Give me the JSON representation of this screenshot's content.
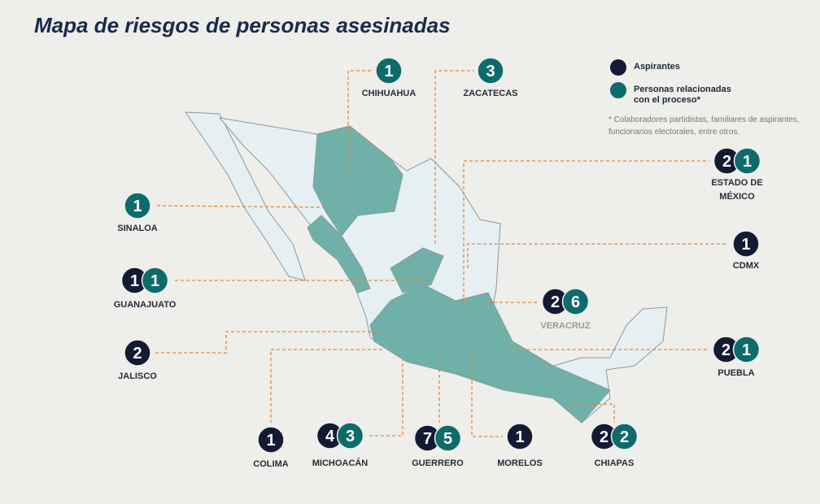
{
  "title": "Mapa de riesgos de personas asesinadas",
  "legend": [
    {
      "label": "Aspirantes",
      "color": "#141a33"
    },
    {
      "label": "Personas relacionadas\ncon el proceso*",
      "color": "#0e6b6b"
    }
  ],
  "note": "* Colaboradores partidistas, familiares de aspirantes, funcionarios electorales, entre otros.",
  "states": [
    {
      "name": "CHIHUAHUA",
      "relacionadas": 1
    },
    {
      "name": "ZACATECAS",
      "relacionadas": 3
    },
    {
      "name": "ESTADO DE\nMÉXICO",
      "aspirantes": 2,
      "relacionadas": 1
    },
    {
      "name": "SINALOA",
      "relacionadas": 1
    },
    {
      "name": "CDMX",
      "aspirantes": 1
    },
    {
      "name": "GUANAJUATO",
      "aspirantes": 1,
      "relacionadas": 1
    },
    {
      "name": "VERACRUZ",
      "aspirantes": 2,
      "relacionadas": 6
    },
    {
      "name": "JALISCO",
      "aspirantes": 2
    },
    {
      "name": "PUEBLA",
      "aspirantes": 2,
      "relacionadas": 1
    },
    {
      "name": "COLIMA",
      "aspirantes": 1
    },
    {
      "name": "MICHOACÁN",
      "aspirantes": 4,
      "relacionadas": 3
    },
    {
      "name": "GUERRERO",
      "aspirantes": 7,
      "relacionadas": 5
    },
    {
      "name": "MORELOS",
      "aspirantes": 1
    },
    {
      "name": "CHIAPAS",
      "aspirantes": 2,
      "relacionadas": 2
    }
  ]
}
